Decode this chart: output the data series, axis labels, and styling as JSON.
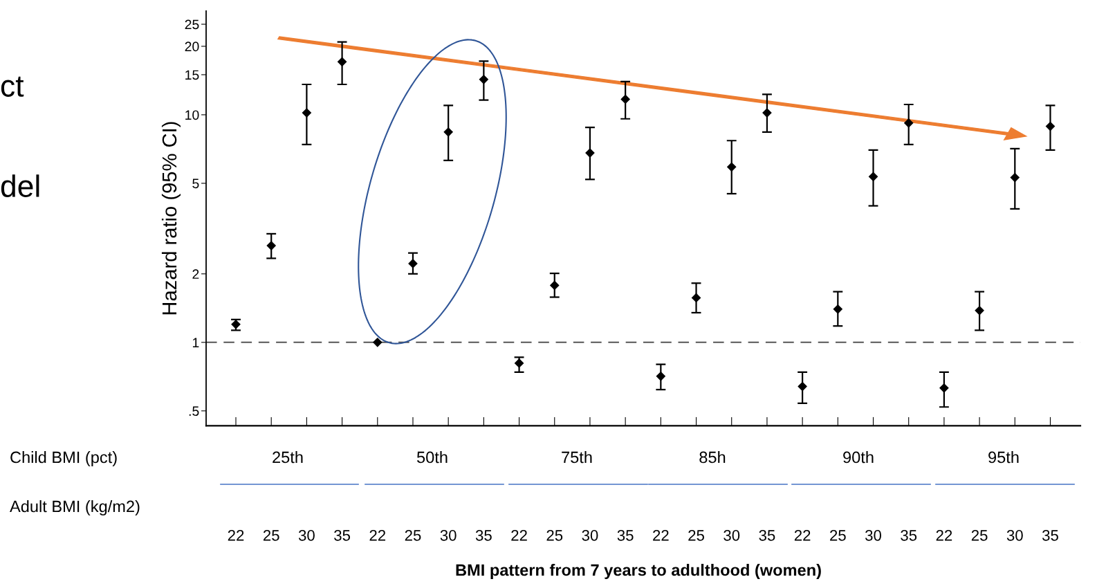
{
  "chart_data": {
    "type": "scatter",
    "xlabel": "BMI pattern from 7 years to adulthood (women)",
    "ylabel": "Hazard ratio (95% CI)",
    "categories": [
      "22",
      "25",
      "30",
      "35",
      "22",
      "25",
      "30",
      "35",
      "22",
      "25",
      "30",
      "35",
      "22",
      "25",
      "30",
      "35",
      "22",
      "25",
      "30",
      "35",
      "22",
      "25",
      "30",
      "35"
    ],
    "values": [
      1.2,
      2.66,
      10.2,
      17.1,
      1.0,
      2.22,
      8.4,
      14.3,
      0.81,
      1.78,
      6.8,
      11.7,
      0.71,
      1.57,
      5.9,
      10.2,
      0.64,
      1.4,
      5.35,
      9.2,
      0.63,
      1.38,
      5.3,
      8.9
    ],
    "errors": [
      [
        1.13,
        1.26
      ],
      [
        2.34,
        3.0
      ],
      [
        7.4,
        13.6
      ],
      [
        13.6,
        20.9
      ],
      null,
      [
        2.0,
        2.47
      ],
      [
        6.3,
        11.0
      ],
      [
        11.6,
        17.2
      ],
      [
        0.74,
        0.86
      ],
      [
        1.58,
        2.01
      ],
      [
        5.2,
        8.8
      ],
      [
        9.6,
        14.0
      ],
      [
        0.62,
        0.8
      ],
      [
        1.35,
        1.82
      ],
      [
        4.5,
        7.7
      ],
      [
        8.4,
        12.3
      ],
      [
        0.54,
        0.74
      ],
      [
        1.18,
        1.67
      ],
      [
        3.98,
        7.0
      ],
      [
        7.4,
        11.1
      ],
      [
        0.52,
        0.74
      ],
      [
        1.13,
        1.67
      ],
      [
        3.86,
        7.1
      ],
      [
        7.0,
        11.0
      ]
    ],
    "color": "#000000",
    "marker": "diamond",
    "log": "y",
    "grid": false,
    "legend": false,
    "ylim": [
      0.43,
      28.6
    ],
    "yticks": [
      {
        "value": 0.5,
        "label": ".5"
      },
      1,
      2,
      5,
      10,
      15,
      20,
      25
    ],
    "ref_lines": [
      {
        "axis": "y",
        "value": 1,
        "color": "#555555",
        "line_style": "dashed"
      }
    ],
    "annotations": [
      "Child BMI (pct)",
      "25th",
      "50th",
      "75th",
      "85h",
      "90th",
      "95th",
      "Adult BMI (kg/m2)",
      "ct",
      "del"
    ]
  }
}
